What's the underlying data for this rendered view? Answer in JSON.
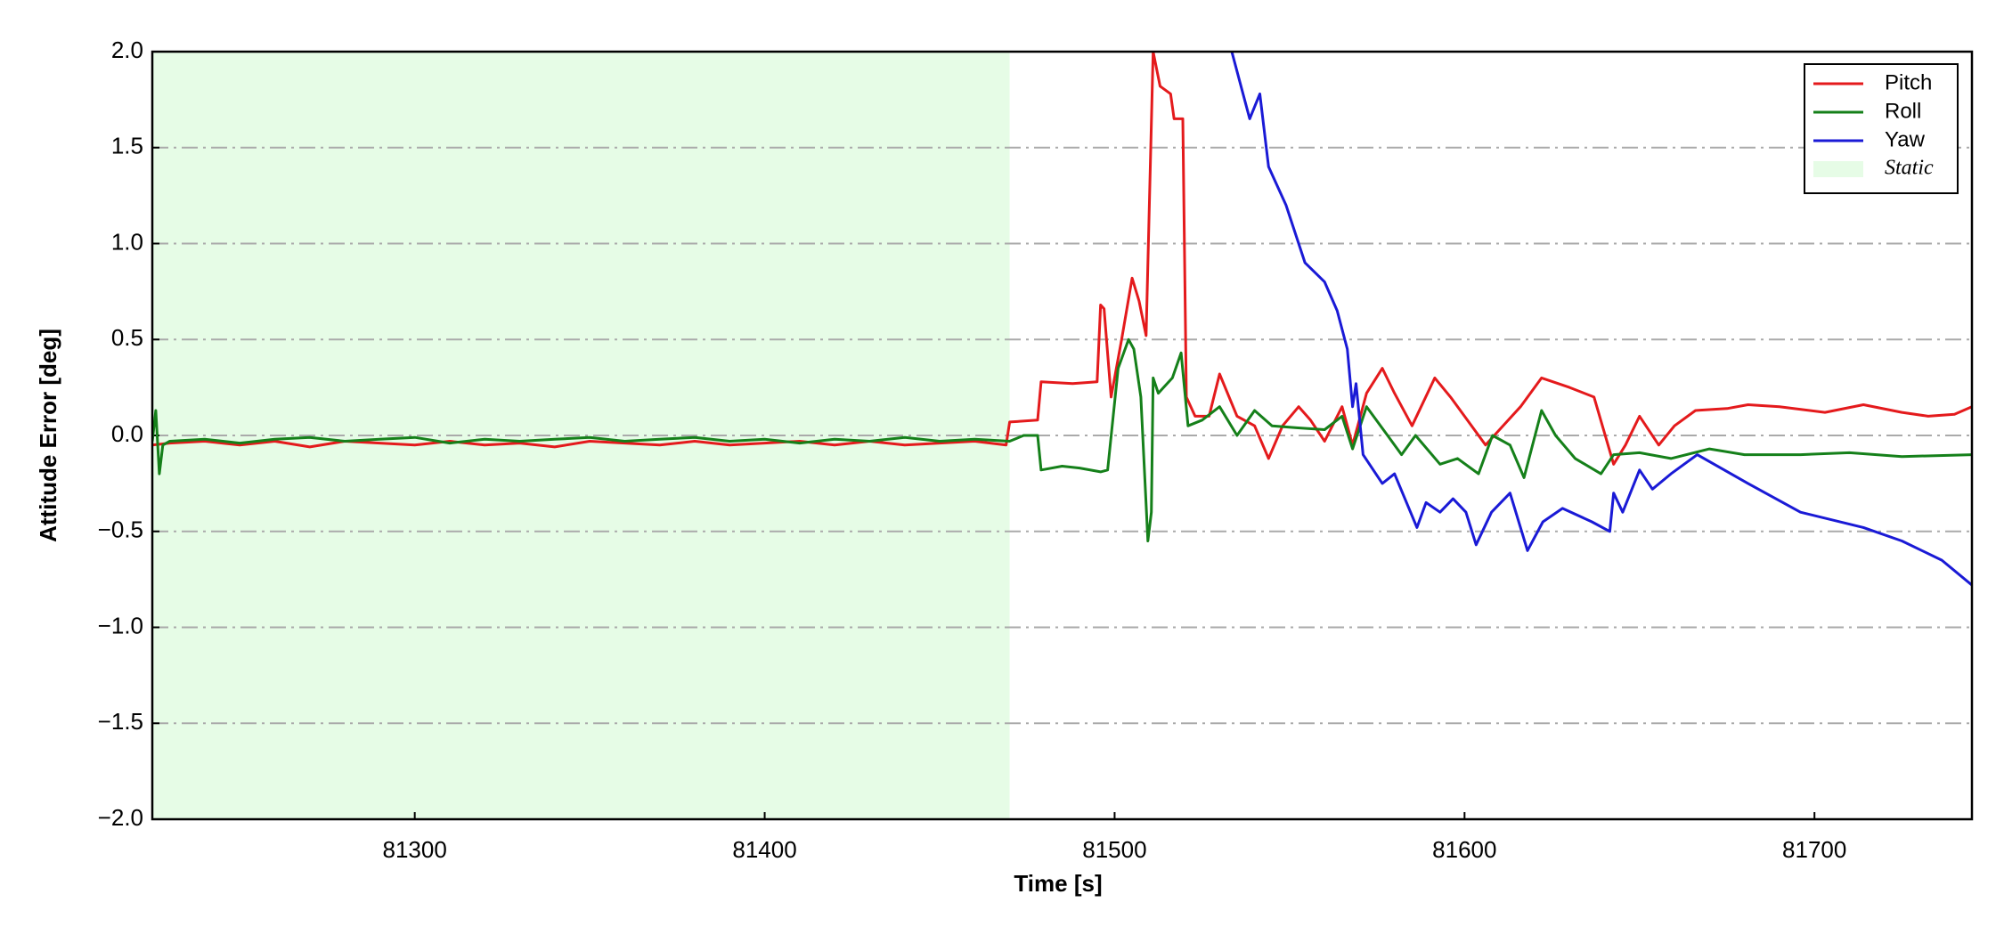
{
  "chart_data": {
    "type": "line",
    "xlabel": "Time [s]",
    "ylabel": "Attitude Error [deg]",
    "xlim": [
      81225,
      81745
    ],
    "ylim": [
      -2,
      2
    ],
    "xticks": [
      81300,
      81400,
      81500,
      81600,
      81700
    ],
    "yticks": [
      {
        "value": -2,
        "label": "−2.0"
      },
      {
        "value": -1.5,
        "label": "−1.5"
      },
      {
        "value": -1,
        "label": "−1.0"
      },
      {
        "value": -0.5,
        "label": "−0.5"
      },
      {
        "value": 0,
        "label": "0.0"
      },
      {
        "value": 0.5,
        "label": "0.5"
      },
      {
        "value": 1,
        "label": "1.0"
      },
      {
        "value": 1.5,
        "label": "1.5"
      },
      {
        "value": 2,
        "label": "2.0"
      }
    ],
    "grid": true,
    "legend": "upper right",
    "static": {
      "label": "Static",
      "range": [
        81225,
        81470
      ],
      "color": "#e6fce6"
    },
    "series": [
      {
        "name": "Pitch",
        "color": "#e41a1c",
        "x": [
          81225,
          81230,
          81240,
          81250,
          81260,
          81270,
          81280,
          81290,
          81300,
          81310,
          81320,
          81330,
          81340,
          81350,
          81360,
          81370,
          81380,
          81390,
          81400,
          81410,
          81420,
          81430,
          81440,
          81450,
          81460,
          81469,
          81470,
          81478,
          81479,
          81488,
          81495,
          81496,
          81497,
          81499,
          81502,
          81505,
          81507,
          81509,
          81511,
          81513,
          81516,
          81517,
          81519.5,
          81520.5,
          81523,
          81527,
          81530,
          81535,
          81540,
          81544,
          81548,
          81552.6,
          81556,
          81560,
          81565,
          81568,
          81572,
          81576.5,
          81580,
          81585,
          81591.5,
          81596,
          81600,
          81606,
          81611,
          81616,
          81622,
          81630,
          81637,
          81642.6,
          81646,
          81650,
          81655.5,
          81660,
          81666,
          81675,
          81681,
          81690,
          81703,
          81714,
          81725,
          81732.5,
          81740,
          81745
        ],
        "values": [
          -0.05,
          -0.04,
          -0.03,
          -0.05,
          -0.03,
          -0.06,
          -0.03,
          -0.04,
          -0.05,
          -0.03,
          -0.05,
          -0.04,
          -0.06,
          -0.03,
          -0.04,
          -0.05,
          -0.03,
          -0.05,
          -0.04,
          -0.03,
          -0.05,
          -0.03,
          -0.05,
          -0.04,
          -0.03,
          -0.05,
          0.07,
          0.08,
          0.28,
          0.27,
          0.28,
          0.68,
          0.66,
          0.2,
          0.5,
          0.82,
          0.7,
          0.52,
          2.0,
          1.82,
          1.78,
          1.65,
          1.65,
          0.2,
          0.1,
          0.1,
          0.32,
          0.1,
          0.05,
          -0.12,
          0.05,
          0.15,
          0.08,
          -0.03,
          0.15,
          -0.05,
          0.22,
          0.35,
          0.22,
          0.05,
          0.3,
          0.2,
          0.1,
          -0.05,
          0.05,
          0.15,
          0.3,
          0.25,
          0.2,
          -0.15,
          -0.05,
          0.1,
          -0.05,
          0.05,
          0.13,
          0.14,
          0.16,
          0.15,
          0.12,
          0.16,
          0.12,
          0.1,
          0.11,
          0.15
        ]
      },
      {
        "name": "Roll",
        "color": "#15801a",
        "x": [
          81225,
          81226,
          81227,
          81228,
          81230,
          81240,
          81250,
          81260,
          81270,
          81280,
          81290,
          81300,
          81310,
          81320,
          81330,
          81340,
          81350,
          81360,
          81370,
          81380,
          81390,
          81400,
          81410,
          81420,
          81430,
          81440,
          81450,
          81460,
          81470,
          81474,
          81478,
          81479,
          81485,
          81490,
          81496,
          81498,
          81501,
          81504,
          81505.5,
          81507.5,
          81509.5,
          81510.5,
          81511,
          81512.5,
          81514,
          81516.5,
          81519,
          81521,
          81525,
          81530,
          81535,
          81540,
          81545,
          81552,
          81560,
          81565,
          81568,
          81572,
          81578,
          81582,
          81586,
          81593,
          81598,
          81604,
          81608,
          81613,
          81617,
          81622,
          81626,
          81631.6,
          81639,
          81642.6,
          81650,
          81659,
          81670,
          81680,
          81696,
          81710,
          81725,
          81745
        ],
        "values": [
          -0.03,
          0.13,
          -0.2,
          -0.05,
          -0.03,
          -0.02,
          -0.04,
          -0.02,
          -0.01,
          -0.03,
          -0.02,
          -0.01,
          -0.04,
          -0.02,
          -0.03,
          -0.02,
          -0.01,
          -0.03,
          -0.02,
          -0.01,
          -0.03,
          -0.02,
          -0.04,
          -0.02,
          -0.03,
          -0.01,
          -0.03,
          -0.02,
          -0.03,
          0.0,
          0.0,
          -0.18,
          -0.16,
          -0.17,
          -0.19,
          -0.18,
          0.35,
          0.5,
          0.45,
          0.2,
          -0.55,
          -0.4,
          0.3,
          0.22,
          0.25,
          0.3,
          0.43,
          0.05,
          0.08,
          0.15,
          0.0,
          0.13,
          0.05,
          0.04,
          0.03,
          0.1,
          -0.07,
          0.15,
          0.0,
          -0.1,
          0.0,
          -0.15,
          -0.12,
          -0.2,
          0.0,
          -0.05,
          -0.22,
          0.13,
          0.0,
          -0.12,
          -0.2,
          -0.1,
          -0.09,
          -0.12,
          -0.07,
          -0.1,
          -0.1,
          -0.09,
          -0.11,
          -0.1
        ]
      },
      {
        "name": "Yaw",
        "color": "#1a1ad6",
        "x": [
          81533.5,
          81538.6,
          81541.5,
          81544,
          81549,
          81554.4,
          81560,
          81563.6,
          81566.5,
          81568,
          81569,
          81571,
          81576.5,
          81580,
          81586.4,
          81589,
          81593,
          81596.7,
          81600.4,
          81603.3,
          81607.7,
          81613,
          81618,
          81622.4,
          81628,
          81636.4,
          81641.5,
          81642.6,
          81645.2,
          81650,
          81653.7,
          81659,
          81666.5,
          81681,
          81696,
          81714,
          81725,
          81736.4,
          81745
        ],
        "values": [
          2.0,
          1.65,
          1.78,
          1.4,
          1.2,
          0.9,
          0.8,
          0.65,
          0.45,
          0.15,
          0.27,
          -0.1,
          -0.25,
          -0.2,
          -0.48,
          -0.35,
          -0.4,
          -0.33,
          -0.4,
          -0.57,
          -0.4,
          -0.3,
          -0.6,
          -0.45,
          -0.38,
          -0.45,
          -0.5,
          -0.3,
          -0.4,
          -0.18,
          -0.28,
          -0.2,
          -0.1,
          -0.25,
          -0.4,
          -0.48,
          -0.55,
          -0.65,
          -0.78
        ]
      }
    ]
  }
}
